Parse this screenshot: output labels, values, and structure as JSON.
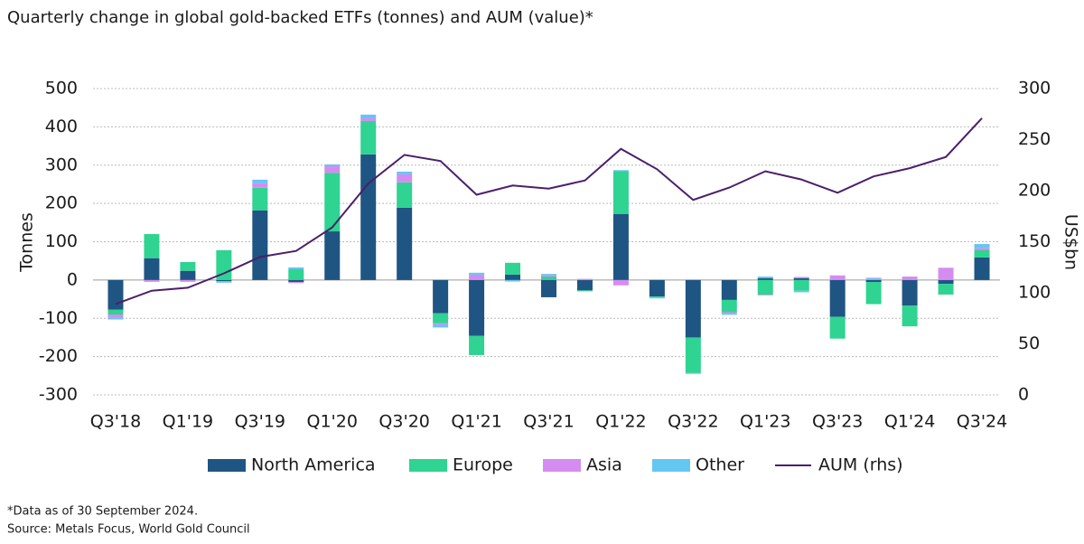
{
  "chart_data": {
    "type": "bar",
    "stacked": true,
    "title": "Quarterly change in global gold-backed ETFs (tonnes) and AUM (value)*",
    "y_label": "Tonnes",
    "y2_label": "US$bn",
    "footnotes": [
      "*Data as of 30 September 2024.",
      "Source: Metals Focus, World Gold Council"
    ],
    "categories": [
      "Q3'18",
      null,
      "Q1'19",
      null,
      "Q3'19",
      null,
      "Q1'20",
      null,
      "Q3'20",
      null,
      "Q1'21",
      null,
      "Q3'21",
      null,
      "Q1'22",
      null,
      "Q3'22",
      null,
      "Q1'23",
      null,
      "Q3'23",
      null,
      "Q1'24",
      null,
      "Q3'24"
    ],
    "series": [
      {
        "name": "North America",
        "color": "#1f5582",
        "values": [
          -77,
          57,
          24,
          -3,
          182,
          -5,
          127,
          328,
          189,
          -87,
          -146,
          14,
          -45,
          -27,
          172,
          -43,
          -150,
          -52,
          5,
          5,
          -96,
          -5,
          -67,
          -10,
          59
        ]
      },
      {
        "name": "Europe",
        "color": "#2fd392",
        "values": [
          -13,
          63,
          23,
          78,
          59,
          28,
          153,
          87,
          66,
          -26,
          -50,
          31,
          9,
          -2,
          112,
          -2,
          -93,
          -32,
          -38,
          -28,
          -57,
          -58,
          -54,
          -28,
          20
        ]
      },
      {
        "name": "Asia",
        "color": "#d58cf0",
        "values": [
          -8,
          -3,
          -3,
          0,
          12,
          -3,
          17,
          7,
          21,
          -4,
          14,
          0,
          4,
          3,
          -14,
          0,
          0,
          -4,
          -2,
          3,
          12,
          3,
          9,
          32,
          5
        ]
      },
      {
        "name": "Other",
        "color": "#64c6f2",
        "values": [
          -5,
          -2,
          -2,
          -4,
          9,
          5,
          5,
          10,
          7,
          -7,
          5,
          -4,
          3,
          -1,
          3,
          -3,
          -2,
          -3,
          4,
          -4,
          0,
          3,
          0,
          0,
          10
        ]
      },
      {
        "name": "AUM (rhs)",
        "color": "#4b1f6b",
        "type": "line",
        "axis": "y2",
        "values": [
          89,
          102,
          105,
          119,
          135,
          141,
          164,
          207,
          235,
          229,
          196,
          205,
          202,
          210,
          241,
          221,
          191,
          203,
          219,
          211,
          198,
          214,
          222,
          233,
          271
        ]
      }
    ],
    "ylim": [
      -300,
      500
    ],
    "yticks": [
      -300,
      -200,
      -100,
      0,
      100,
      200,
      300,
      400,
      500
    ],
    "y2lim": [
      0,
      300
    ],
    "y2ticks": [
      0,
      50,
      100,
      150,
      200,
      250,
      300
    ],
    "grid": true,
    "legend": "bottom"
  }
}
